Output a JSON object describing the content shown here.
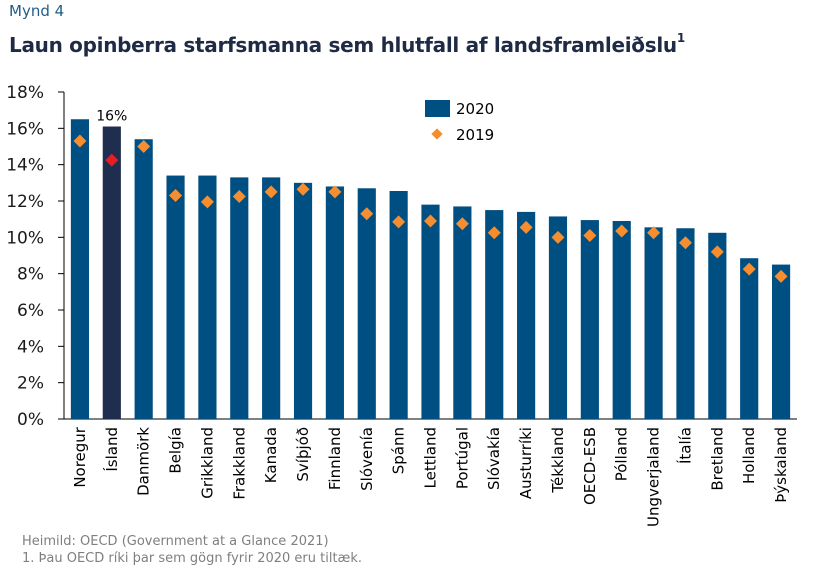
{
  "figure_label": "Mynd 4",
  "title": "Laun opinberra starfsmanna sem hlutfall af landsframleiðslu",
  "title_superscript": "1",
  "source_lines": [
    "Heimild: OECD (Government at a Glance 2021)",
    "1. Þau OECD ríki þar sem gögn fyrir 2020 eru tiltæk."
  ],
  "chart_data": {
    "type": "bar",
    "title": "Laun opinberra starfsmanna sem hlutfall af landsframleiðslu",
    "xlabel": "",
    "ylabel": "",
    "ylim": [
      0,
      18
    ],
    "yticks": [
      "0%",
      "2%",
      "4%",
      "6%",
      "8%",
      "10%",
      "12%",
      "14%",
      "16%",
      "18%"
    ],
    "ytick_values": [
      0,
      2,
      4,
      6,
      8,
      10,
      12,
      14,
      16,
      18
    ],
    "grid": false,
    "legend_position": "top-center",
    "categories": [
      "Noregur",
      "Ísland",
      "Danmörk",
      "Belgía",
      "Grikkland",
      "Frakkland",
      "Kanada",
      "Svíþjóð",
      "Finnland",
      "Slóvenía",
      "Spánn",
      "Lettland",
      "Portúgal",
      "Slóvakía",
      "Austurríki",
      "Tékkland",
      "OECD-ESB",
      "Pólland",
      "Ungverjaland",
      "Ítalía",
      "Bretland",
      "Holland",
      "Þýskaland"
    ],
    "series": [
      {
        "name": "2020",
        "kind": "bar",
        "color": "#004f82",
        "highlight_color": "#1f2d4e",
        "highlight_index": 1,
        "values": [
          16.5,
          16.1,
          15.4,
          13.4,
          13.4,
          13.3,
          13.3,
          13.0,
          12.8,
          12.7,
          12.55,
          11.8,
          11.7,
          11.5,
          11.4,
          11.15,
          10.95,
          10.9,
          10.55,
          10.5,
          10.25,
          8.85,
          8.5
        ]
      },
      {
        "name": "2019",
        "kind": "marker-diamond",
        "color": "#f68d2e",
        "highlight_color": "#e31e24",
        "highlight_index": 1,
        "values": [
          15.3,
          14.25,
          15.0,
          12.3,
          11.95,
          12.25,
          12.5,
          12.65,
          12.5,
          11.3,
          10.85,
          10.9,
          10.75,
          10.25,
          10.55,
          10.0,
          10.1,
          10.35,
          10.25,
          9.7,
          9.2,
          8.25,
          7.85
        ]
      }
    ],
    "annotations": [
      {
        "category": "Ísland",
        "text": "16%"
      }
    ]
  }
}
